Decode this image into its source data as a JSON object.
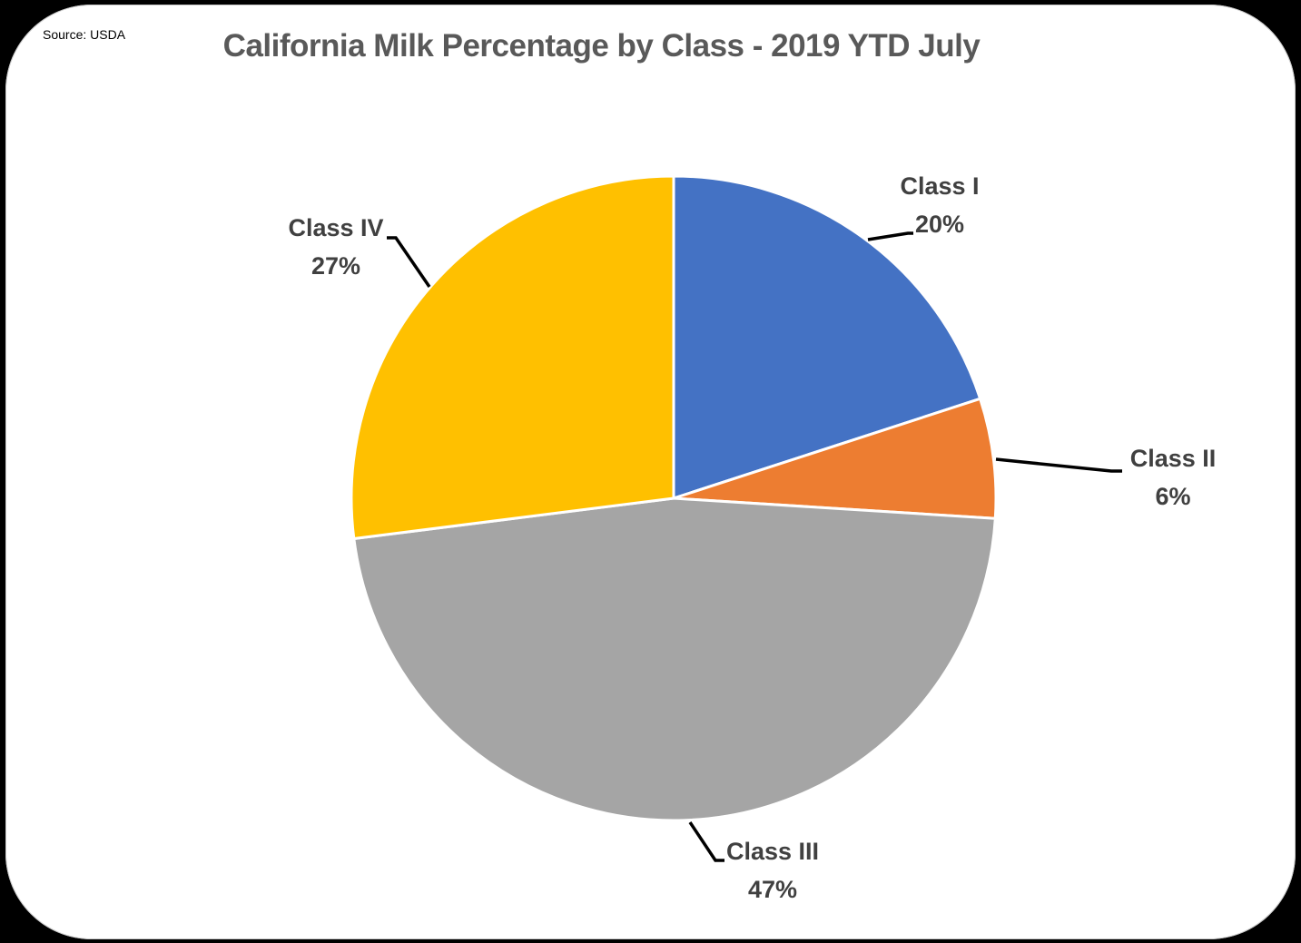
{
  "source_note": "Source: USDA",
  "title": "California Milk Percentage by Class - 2019 YTD July",
  "chart_data": {
    "type": "pie",
    "title": "California Milk Percentage by Class - 2019 YTD July",
    "source": "Source: USDA",
    "categories": [
      "Class I",
      "Class II",
      "Class III",
      "Class IV"
    ],
    "values": [
      20,
      6,
      47,
      27
    ],
    "labels": [
      "20%",
      "6%",
      "47%",
      "27%"
    ],
    "colors": [
      "#4472C4",
      "#ED7D31",
      "#A5A5A5",
      "#FFC000"
    ],
    "start_angle": "12 o'clock, clockwise",
    "legend": "none (data labels with leader lines)"
  },
  "labels": {
    "class1": {
      "name": "Class I",
      "pct": "20%"
    },
    "class2": {
      "name": "Class II",
      "pct": "6%"
    },
    "class3": {
      "name": "Class III",
      "pct": "47%"
    },
    "class4": {
      "name": "Class IV",
      "pct": "27%"
    }
  }
}
